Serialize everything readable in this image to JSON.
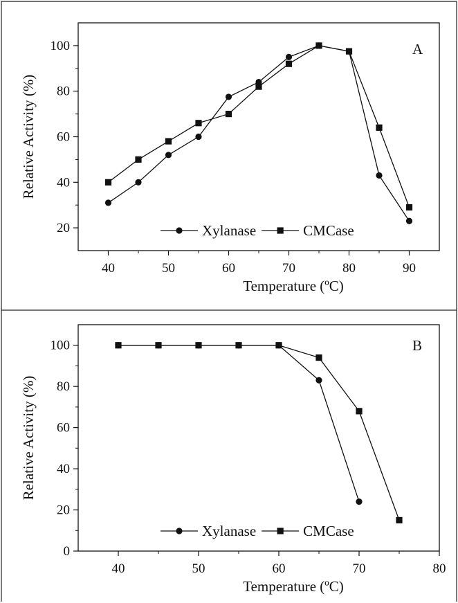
{
  "chart_data": [
    {
      "type": "line",
      "panel_label": "A",
      "xlabel": "Temperature (ºC)",
      "ylabel": "Relative Activity (%)",
      "xlim": [
        35,
        95
      ],
      "ylim": [
        10,
        110
      ],
      "xticks": [
        40,
        50,
        60,
        70,
        80,
        90
      ],
      "yticks": [
        20,
        40,
        60,
        80,
        100
      ],
      "legend_position": "bottom-right",
      "series": [
        {
          "name": "Xylanase",
          "marker": "circle",
          "x": [
            40,
            45,
            50,
            55,
            60,
            65,
            70,
            75,
            80,
            85,
            90
          ],
          "y": [
            31,
            40,
            52,
            60,
            77.5,
            84,
            95,
            100,
            97.5,
            43,
            23
          ]
        },
        {
          "name": "CMCase",
          "marker": "square",
          "x": [
            40,
            45,
            50,
            55,
            60,
            65,
            70,
            75,
            80,
            85,
            90
          ],
          "y": [
            40,
            50,
            58,
            66,
            70,
            82,
            92,
            100,
            97.5,
            64,
            29
          ]
        }
      ]
    },
    {
      "type": "line",
      "panel_label": "B",
      "xlabel": "Temperature (ºC)",
      "ylabel": "Relative Activity (%)",
      "xlim": [
        35,
        80
      ],
      "ylim": [
        0,
        110
      ],
      "xticks": [
        40,
        50,
        60,
        70,
        80
      ],
      "yticks": [
        0,
        20,
        40,
        60,
        80,
        100
      ],
      "legend_position": "bottom-right",
      "series": [
        {
          "name": "Xylanase",
          "marker": "circle",
          "x": [
            40,
            45,
            50,
            55,
            60,
            65,
            70
          ],
          "y": [
            100,
            100,
            100,
            100,
            100,
            83,
            24
          ]
        },
        {
          "name": "CMCase",
          "marker": "square",
          "x": [
            40,
            45,
            50,
            55,
            60,
            65,
            70,
            75
          ],
          "y": [
            100,
            100,
            100,
            100,
            100,
            94,
            68,
            15
          ]
        }
      ]
    }
  ]
}
